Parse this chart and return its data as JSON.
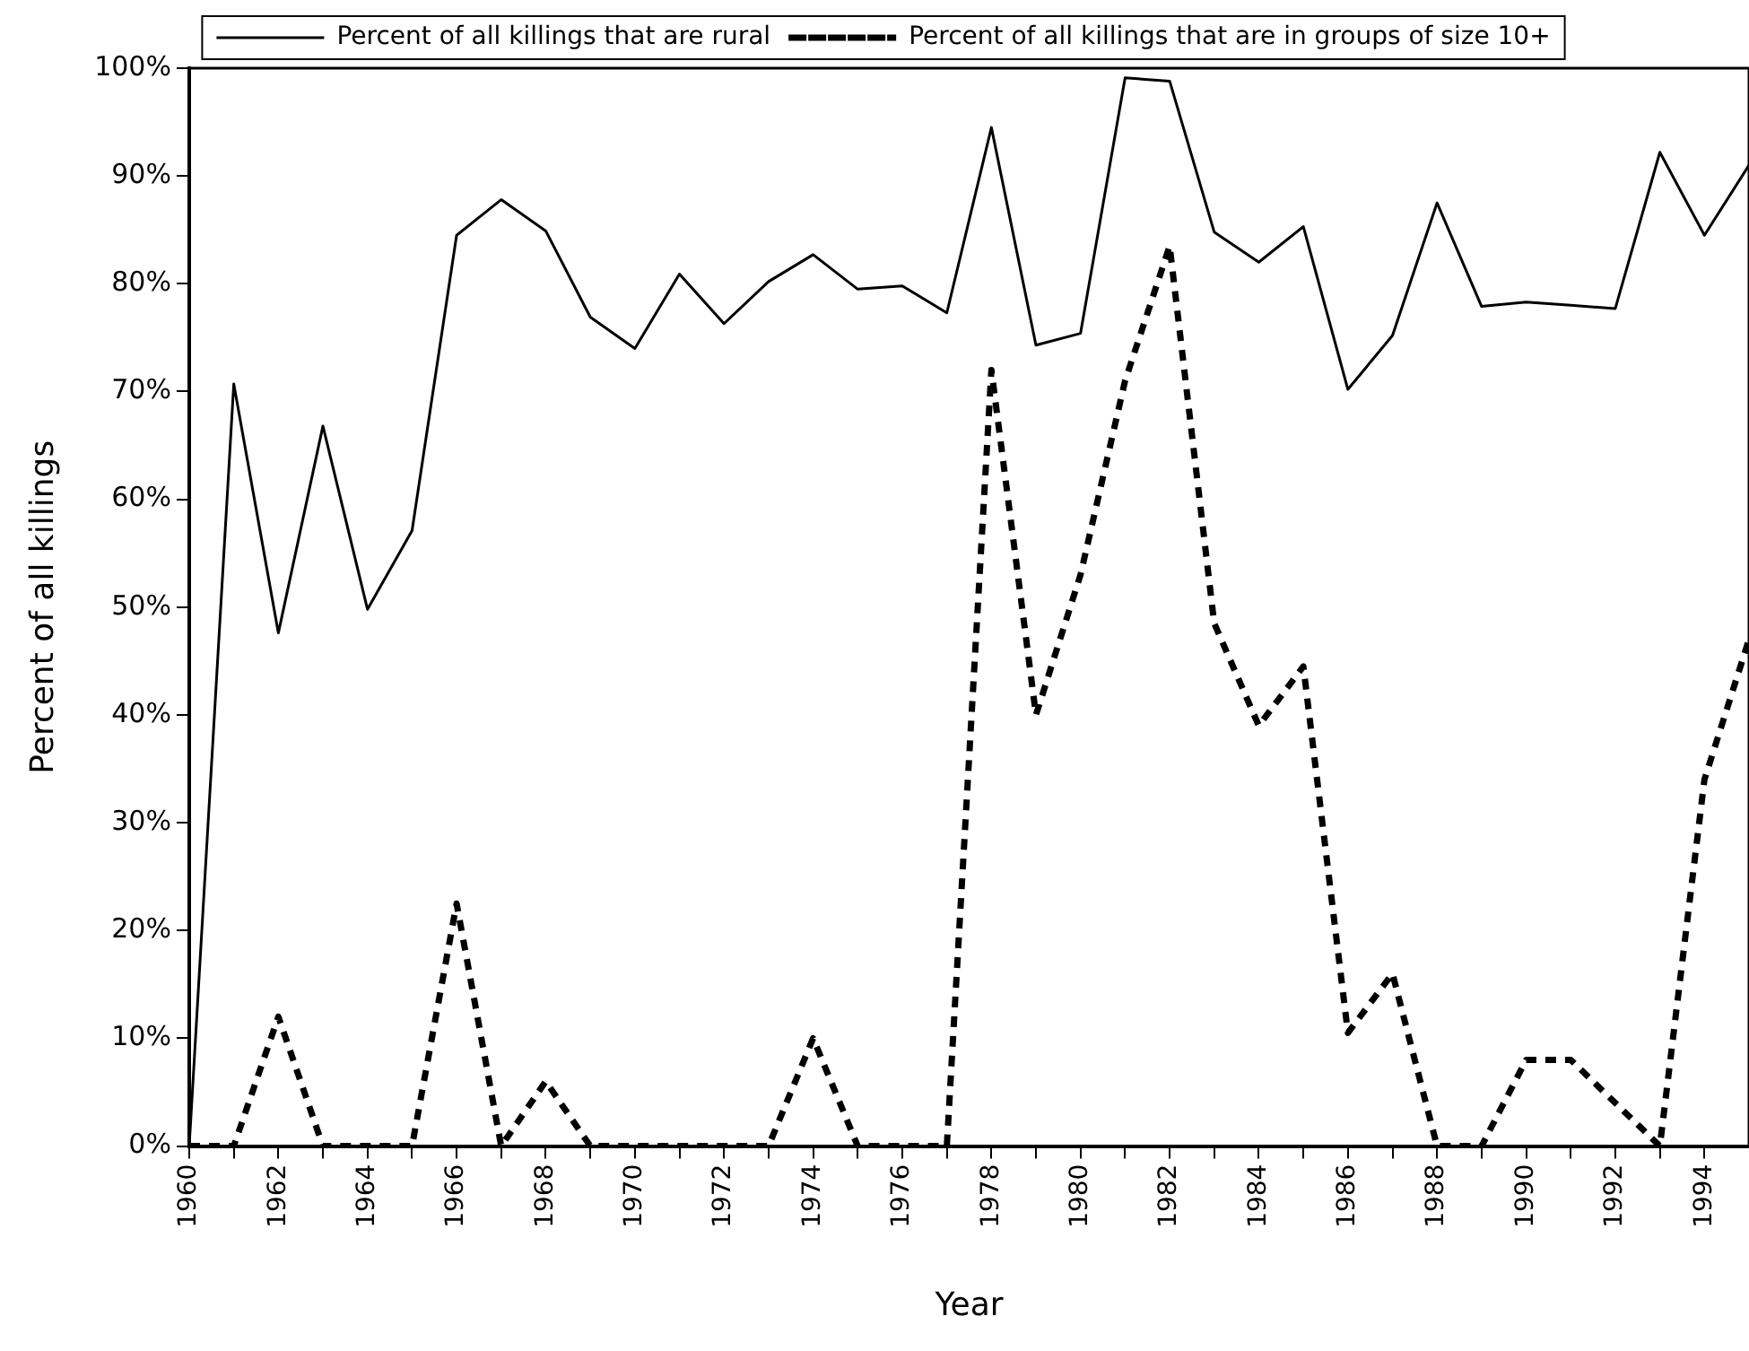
{
  "chart_data": {
    "type": "line",
    "xlabel": "Year",
    "ylabel": "Percent of all killings",
    "legend": "top",
    "grid": false,
    "marker": "none",
    "x": [
      1960,
      1961,
      1962,
      1963,
      1964,
      1965,
      1966,
      1967,
      1968,
      1969,
      1970,
      1971,
      1972,
      1973,
      1974,
      1975,
      1976,
      1977,
      1978,
      1979,
      1980,
      1981,
      1982,
      1983,
      1984,
      1985,
      1986,
      1987,
      1988,
      1989,
      1990,
      1991,
      1992,
      1993,
      1994,
      1995
    ],
    "xlim": [
      1960,
      1995
    ],
    "xticks": [
      1960,
      {
        "value": 1961,
        "label": null
      },
      1962,
      {
        "value": 1963,
        "label": null
      },
      1964,
      {
        "value": 1965,
        "label": null
      },
      1966,
      {
        "value": 1967,
        "label": null
      },
      1968,
      {
        "value": 1969,
        "label": null
      },
      1970,
      {
        "value": 1971,
        "label": null
      },
      1972,
      {
        "value": 1973,
        "label": null
      },
      1974,
      {
        "value": 1975,
        "label": null
      },
      1976,
      {
        "value": 1977,
        "label": null
      },
      1978,
      {
        "value": 1979,
        "label": null
      },
      1980,
      {
        "value": 1981,
        "label": null
      },
      1982,
      {
        "value": 1983,
        "label": null
      },
      1984,
      {
        "value": 1985,
        "label": null
      },
      1986,
      {
        "value": 1987,
        "label": null
      },
      1988,
      {
        "value": 1989,
        "label": null
      },
      1990,
      {
        "value": 1991,
        "label": null
      },
      1992,
      {
        "value": 1993,
        "label": null
      },
      1994
    ],
    "ylim": [
      0,
      100
    ],
    "yticks": [
      {
        "value": 0,
        "label": "0%"
      },
      {
        "value": 10,
        "label": "10%"
      },
      {
        "value": 20,
        "label": "20%"
      },
      {
        "value": 30,
        "label": "30%"
      },
      {
        "value": 40,
        "label": "40%"
      },
      {
        "value": 50,
        "label": "50%"
      },
      {
        "value": 60,
        "label": "60%"
      },
      {
        "value": 70,
        "label": "70%"
      },
      {
        "value": 80,
        "label": "80%"
      },
      {
        "value": 90,
        "label": "90%"
      },
      {
        "value": 100,
        "label": "100%"
      }
    ],
    "series": [
      {
        "name": "Percent of all killings that are rural",
        "color": "#000000",
        "line_style": "solid",
        "values": [
          0,
          70.7,
          47.6,
          66.8,
          49.8,
          57.1,
          84.5,
          87.8,
          84.9,
          76.9,
          74,
          80.9,
          76.3,
          80.2,
          82.7,
          79.5,
          79.8,
          77.3,
          94.5,
          74.3,
          75.4,
          99.1,
          98.8,
          84.8,
          82,
          85.3,
          70.2,
          75.2,
          87.5,
          77.9,
          78.3,
          78,
          77.7,
          92.2,
          84.5,
          91
        ]
      },
      {
        "name": "Percent of all killings that are in groups of size 10+",
        "color": "#000000",
        "line_style": "dashed",
        "values": [
          0,
          0,
          12,
          0,
          0,
          0,
          22.5,
          0,
          6,
          0,
          0,
          0,
          0,
          0,
          10,
          0,
          0,
          0,
          72,
          40,
          53,
          71,
          83.5,
          48.5,
          39,
          44.5,
          10.5,
          16,
          0,
          0,
          8,
          8,
          4,
          0,
          34,
          47
        ]
      }
    ]
  }
}
